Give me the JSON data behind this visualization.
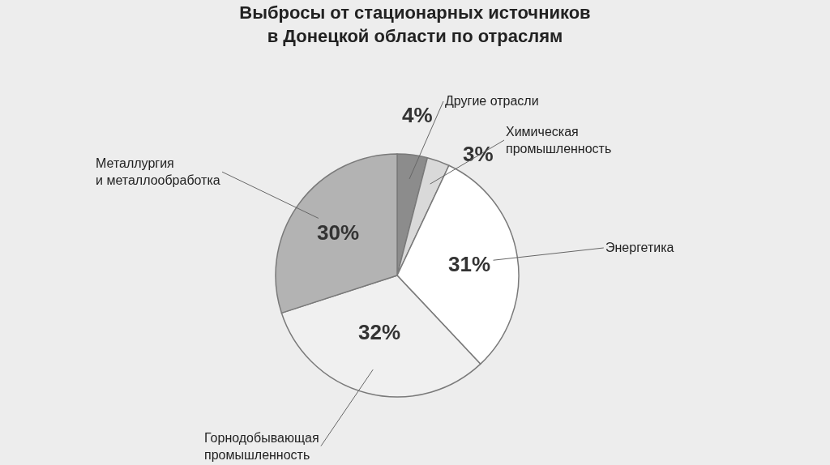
{
  "chart_data": {
    "type": "pie",
    "title": "Выбросы от стационарных источников\nв Донецкой области по отраслям",
    "categories": [
      "Другие отрасли",
      "Химическая\nпромышленность",
      "Энергетика",
      "Горнодобывающая\nпромышленность",
      "Металлургия\nи металлообработка"
    ],
    "values": [
      4,
      3,
      31,
      32,
      30
    ],
    "value_labels": [
      "4%",
      "3%",
      "31%",
      "32%",
      "30%"
    ],
    "colors": [
      "#8c8c8c",
      "#d9d9d9",
      "#ffffff",
      "#f0f0f0",
      "#b3b3b3"
    ]
  }
}
